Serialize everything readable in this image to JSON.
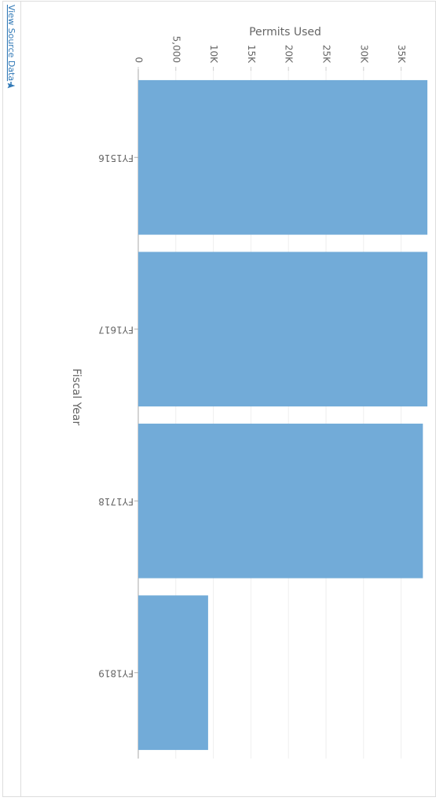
{
  "link": "View Source Data",
  "chart_data": {
    "type": "bar",
    "orientation": "horizontal",
    "x_label": "Permits Used",
    "y_label": "Fiscal Year",
    "categories": [
      "FY1516",
      "FY1617",
      "FY1718",
      "FY1819"
    ],
    "values": [
      38500,
      38500,
      37900,
      9300
    ],
    "color": "#72abd8",
    "xlim": [
      0,
      38600
    ],
    "xticks": [
      0,
      {
        "value": 5000,
        "label": "5,000"
      },
      {
        "value": 10000,
        "label": "10K"
      },
      {
        "value": 15000,
        "label": "15K"
      },
      {
        "value": 20000,
        "label": "20K"
      },
      {
        "value": 25000,
        "label": "25K"
      },
      {
        "value": 30000,
        "label": "30K"
      },
      {
        "value": 35000,
        "label": "35K"
      }
    ],
    "grid": true
  }
}
